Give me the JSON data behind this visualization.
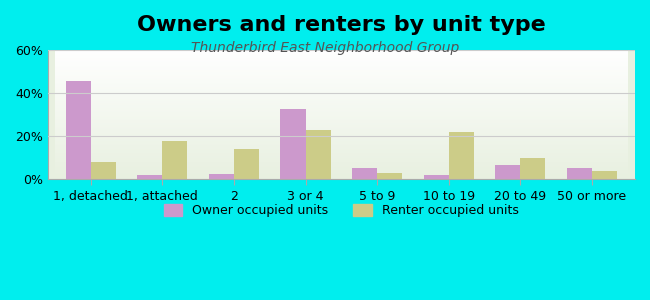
{
  "title": "Owners and renters by unit type",
  "subtitle": "Thunderbird East Neighborhood Group",
  "categories": [
    "1, detached",
    "1, attached",
    "2",
    "3 or 4",
    "5 to 9",
    "10 to 19",
    "20 to 49",
    "50 or more"
  ],
  "owner_values": [
    46,
    2,
    2.5,
    33,
    5.5,
    2,
    6.5,
    5.5
  ],
  "renter_values": [
    8,
    18,
    14,
    23,
    3,
    22,
    10,
    4
  ],
  "owner_color": "#cc99cc",
  "renter_color": "#cccc88",
  "background_color": "#00eeee",
  "plot_bg_top": "#ffffff",
  "plot_bg_bottom": "#e8f0e0",
  "ylim": [
    0,
    60
  ],
  "yticks": [
    0,
    20,
    40,
    60
  ],
  "ytick_labels": [
    "0%",
    "20%",
    "40%",
    "60%"
  ],
  "bar_width": 0.35,
  "legend_owner": "Owner occupied units",
  "legend_renter": "Renter occupied units",
  "title_fontsize": 16,
  "subtitle_fontsize": 10,
  "axis_fontsize": 9,
  "legend_fontsize": 9
}
